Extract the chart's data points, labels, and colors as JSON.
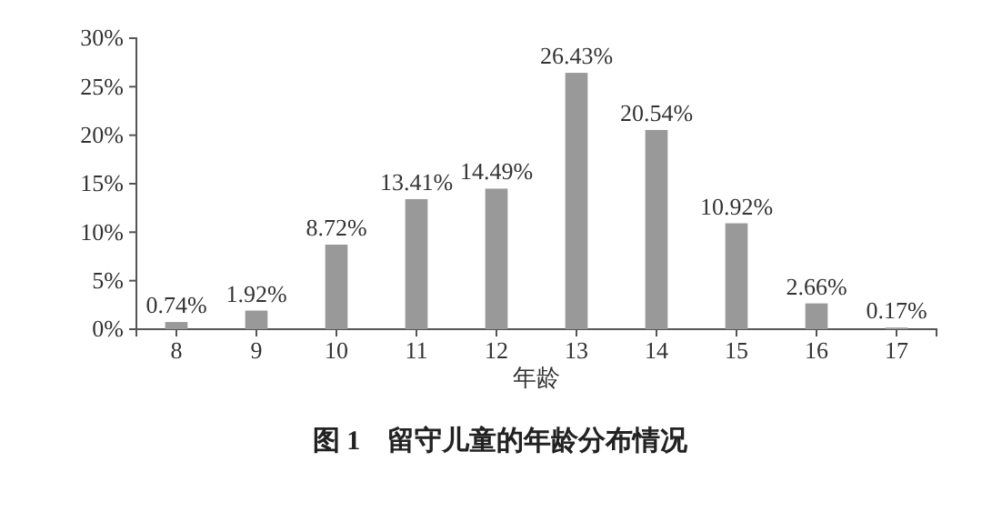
{
  "chart_data": {
    "type": "bar",
    "title": "图 1　留守儿童的年龄分布情况",
    "xlabel": "年龄",
    "categories": [
      "8",
      "9",
      "10",
      "11",
      "12",
      "13",
      "14",
      "15",
      "16",
      "17"
    ],
    "values": [
      0.74,
      1.92,
      8.72,
      13.41,
      14.49,
      26.43,
      20.54,
      10.92,
      2.66,
      0.17
    ],
    "value_labels": [
      "0.74%",
      "1.92%",
      "8.72%",
      "13.41%",
      "14.49%",
      "26.43%",
      "20.54%",
      "10.92%",
      "2.66%",
      "0.17%"
    ],
    "color": "#999999",
    "ylim": [
      0,
      30
    ],
    "yticks": [
      {
        "value": 0,
        "label": "0%"
      },
      {
        "value": 5,
        "label": "5%"
      },
      {
        "value": 10,
        "label": "10%"
      },
      {
        "value": 15,
        "label": "15%"
      },
      {
        "value": 20,
        "label": "20%"
      },
      {
        "value": 25,
        "label": "25%"
      },
      {
        "value": 30,
        "label": "30%"
      }
    ],
    "grid": false
  }
}
